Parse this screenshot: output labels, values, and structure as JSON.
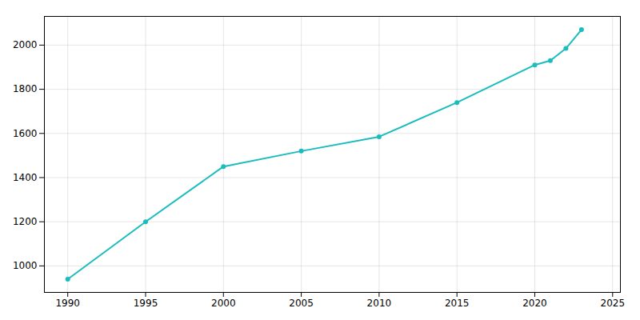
{
  "chart_data": {
    "type": "line",
    "x": [
      1990,
      1995,
      2000,
      2005,
      2010,
      2015,
      2020,
      2021,
      2022,
      2023
    ],
    "values": [
      940,
      1200,
      1450,
      1520,
      1585,
      1740,
      1910,
      1930,
      1985,
      2070
    ],
    "color": "#1abcbe",
    "marker": "circle",
    "xlim": [
      1988.5,
      2025.5
    ],
    "ylim": [
      880,
      2130
    ],
    "xticks": [
      1990,
      1995,
      2000,
      2005,
      2010,
      2015,
      2020,
      2025
    ],
    "yticks": [
      1000,
      1200,
      1400,
      1600,
      1800,
      2000
    ],
    "grid": true
  }
}
